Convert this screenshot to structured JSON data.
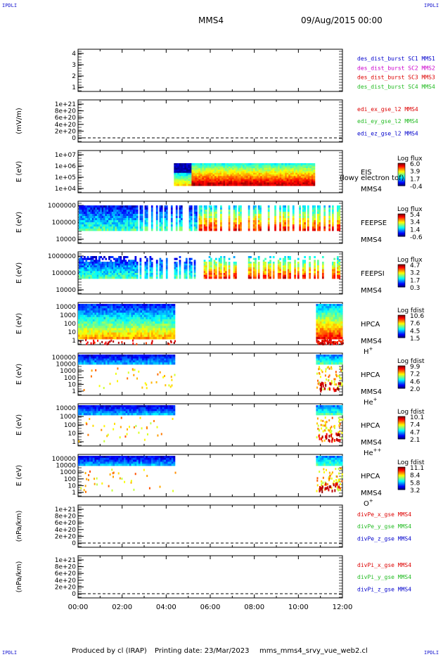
{
  "corner_label": "IPDLI",
  "header": {
    "spacecraft": "MMS4",
    "datetime": "09/Aug/2015 00:00"
  },
  "footer": {
    "produced_by": "Produced by cl (IRAP)",
    "printing_date": "Printing date: 23/Mar/2023",
    "filename": "mms_mms4_srvy_vue_web2.cl"
  },
  "colors": {
    "red": "#dd0000",
    "green": "#22bb22",
    "blue": "#0000cc",
    "magenta": "#cc00cc"
  },
  "chart_data": [
    {
      "type": "line",
      "name": "des_dist_burst",
      "yticks": [
        "1",
        "2",
        "3",
        "4"
      ],
      "legend": [
        {
          "text": "des_dist_burst SC1 MMS1",
          "color": "#0000cc"
        },
        {
          "text": "des_dist_burst SC2 MMS2",
          "color": "#cc00cc"
        },
        {
          "text": "des_dist_burst SC3 MMS3",
          "color": "#dd0000"
        },
        {
          "text": "des_dist_burst SC4 MMS4",
          "color": "#22bb22"
        }
      ]
    },
    {
      "type": "line",
      "name": "edi",
      "ylabel": "(mV/m)",
      "yticks": [
        "0",
        "2e+20",
        "4e+20",
        "6e+20",
        "8e+20",
        "1e+21"
      ],
      "legend": [
        {
          "text": "edi_ex_gse_l2 MMS4",
          "color": "#dd0000"
        },
        {
          "text": "edi_ey_gse_l2 MMS4",
          "color": "#22bb22"
        },
        {
          "text": "edi_ez_gse_l2 MMS4",
          "color": "#0000cc"
        }
      ]
    },
    {
      "type": "heatmap",
      "name": "eis",
      "ylabel": "E (eV)",
      "yticks": [
        "1e+04",
        "1e+05",
        "1e+06",
        "1e+07"
      ],
      "label_lines": [
        "EIS",
        "MMS4"
      ],
      "overlay_text": "(lowy electron tof)",
      "colorbar_title": "Log flux",
      "colorbar_ticks": [
        "6.0",
        "3.9",
        "1.7",
        "-0.4"
      ],
      "time_range": [
        "04:20",
        "10:50"
      ]
    },
    {
      "type": "heatmap",
      "name": "feepse",
      "ylabel": "E (eV)",
      "yticks": [
        "10000",
        "100000",
        "1000000"
      ],
      "label_lines": [
        "FEEPSE",
        "MMS4"
      ],
      "colorbar_title": "Log flux",
      "colorbar_ticks": [
        "5.4",
        "3.4",
        "1.4",
        "-0.6"
      ],
      "time_range": [
        "00:00",
        "12:00"
      ]
    },
    {
      "type": "heatmap",
      "name": "feepsi",
      "ylabel": "E (eV)",
      "yticks": [
        "10000",
        "100000",
        "1000000"
      ],
      "label_lines": [
        "FEEPSI",
        "MMS4"
      ],
      "colorbar_title": "Log flux",
      "colorbar_ticks": [
        "4.7",
        "3.2",
        "1.7",
        "0.3"
      ],
      "time_range": [
        "00:00",
        "12:00"
      ]
    },
    {
      "type": "heatmap",
      "name": "hpca-h",
      "ylabel": "E (eV)",
      "yticks": [
        "1",
        "10",
        "100",
        "1000",
        "10000"
      ],
      "label_lines": [
        "HPCA",
        "MMS4"
      ],
      "species": "H",
      "charge": "+",
      "colorbar_title": "Log fdist",
      "colorbar_ticks": [
        "10.6",
        "7.6",
        "4.5",
        "1.5"
      ],
      "time_range": [
        "00:00",
        "04:25",
        "10:50",
        "12:00"
      ]
    },
    {
      "type": "heatmap",
      "name": "hpca-he",
      "ylabel": "E (eV)",
      "yticks": [
        "1",
        "10",
        "100",
        "1000",
        "10000",
        "100000"
      ],
      "label_lines": [
        "HPCA",
        "MMS4"
      ],
      "species": "He",
      "charge": "+",
      "colorbar_title": "Log fdist",
      "colorbar_ticks": [
        "9.9",
        "7.2",
        "4.6",
        "2.0"
      ],
      "time_range": [
        "00:00",
        "04:25",
        "10:50",
        "12:00"
      ]
    },
    {
      "type": "heatmap",
      "name": "hpca-hepp",
      "ylabel": "E (eV)",
      "yticks": [
        "1",
        "10",
        "100",
        "1000",
        "10000"
      ],
      "label_lines": [
        "HPCA",
        "MMS4"
      ],
      "species": "He",
      "charge": "++",
      "colorbar_title": "Log fdist",
      "colorbar_ticks": [
        "10.1",
        "7.4",
        "4.7",
        "2.1"
      ],
      "time_range": [
        "00:00",
        "04:25",
        "10:50",
        "12:00"
      ]
    },
    {
      "type": "heatmap",
      "name": "hpca-o",
      "ylabel": "E (eV)",
      "yticks": [
        "1",
        "10",
        "100",
        "1000",
        "10000",
        "100000"
      ],
      "label_lines": [
        "HPCA",
        "MMS4"
      ],
      "species": "O",
      "charge": "+",
      "colorbar_title": "Log fdist",
      "colorbar_ticks": [
        "11.1",
        "8.4",
        "5.8",
        "3.2"
      ],
      "time_range": [
        "00:00",
        "04:25",
        "10:50",
        "12:00"
      ]
    },
    {
      "type": "line",
      "name": "divpe",
      "ylabel": "(nPa/km)",
      "yticks": [
        "0",
        "2e+20",
        "4e+20",
        "6e+20",
        "8e+20",
        "1e+21"
      ],
      "legend": [
        {
          "text": "divPe_x_gse MMS4",
          "color": "#dd0000"
        },
        {
          "text": "divPe_y_gse MMS4",
          "color": "#22bb22"
        },
        {
          "text": "divPe_z_gse MMS4",
          "color": "#0000cc"
        }
      ]
    },
    {
      "type": "line",
      "name": "divpi",
      "ylabel": "(nPa/km)",
      "yticks": [
        "0",
        "2e+20",
        "4e+20",
        "6e+20",
        "8e+20",
        "1e+21"
      ],
      "legend": [
        {
          "text": "divPi_x_gse MMS4",
          "color": "#dd0000"
        },
        {
          "text": "divPi_y_gse MMS4",
          "color": "#22bb22"
        },
        {
          "text": "divPi_z_gse MMS4",
          "color": "#0000cc"
        }
      ]
    }
  ],
  "time_axis": [
    "00:00",
    "02:00",
    "04:00",
    "06:00",
    "08:00",
    "10:00",
    "12:00"
  ]
}
